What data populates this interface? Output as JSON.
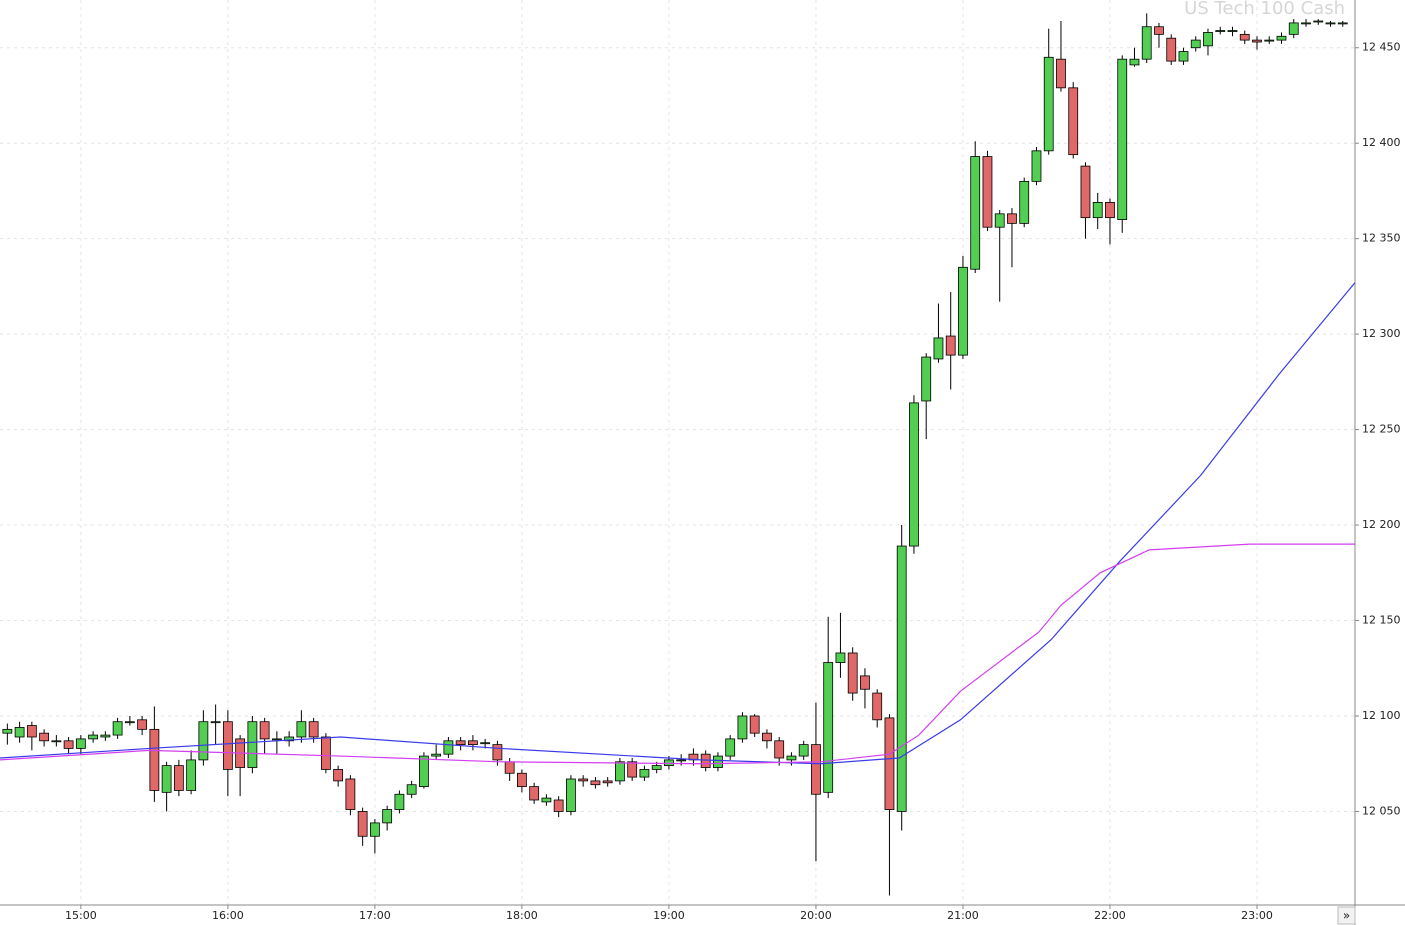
{
  "chart_data": {
    "type": "candlestick",
    "title": "US Tech 100 Cash",
    "scroll_button": "»",
    "x": [
      870,
      875,
      880,
      885,
      890,
      895,
      900,
      905,
      910,
      915,
      920,
      925,
      930,
      935,
      940,
      945,
      950,
      955,
      960,
      965,
      970,
      975,
      980,
      985,
      990,
      995,
      1000,
      1005,
      1010,
      1015,
      1020,
      1025,
      1030,
      1035,
      1040,
      1045,
      1050,
      1055,
      1060,
      1065,
      1070,
      1075,
      1080,
      1085,
      1090,
      1095,
      1100,
      1105,
      1110,
      1115,
      1120,
      1125,
      1130,
      1135,
      1140,
      1145,
      1150,
      1155,
      1160,
      1165,
      1170,
      1175,
      1180,
      1185,
      1190,
      1195,
      1200,
      1205,
      1210,
      1215,
      1220,
      1225,
      1230,
      1235,
      1240,
      1245,
      1250,
      1255,
      1260,
      1265,
      1270,
      1275,
      1280,
      1285,
      1290,
      1295,
      1300,
      1305,
      1310,
      1315,
      1320,
      1325,
      1330,
      1335,
      1340,
      1345,
      1350,
      1355,
      1360,
      1365,
      1370,
      1375,
      1380,
      1385,
      1390,
      1395,
      1400,
      1405,
      1410,
      1415
    ],
    "open": [
      12091,
      12089,
      12095,
      12091,
      12087,
      12087,
      12083,
      12088,
      12089,
      12090,
      12097,
      12098,
      12093,
      12060,
      12074,
      12061,
      12077,
      12097,
      12097,
      12088,
      12073,
      12097,
      12088,
      12087,
      12089,
      12097,
      12089,
      12072,
      12067,
      12050,
      12037,
      12044,
      12051,
      12059,
      12063,
      12079,
      12080,
      12087,
      12087,
      12086,
      12085,
      12076,
      12070,
      12063,
      12055,
      12056,
      12050,
      12067,
      12066,
      12066,
      12066,
      12076,
      12068,
      12072,
      12074,
      12077,
      12080,
      12080,
      12073,
      12079,
      12088,
      12100,
      12091,
      12087,
      12077,
      12079,
      12085,
      12060,
      12128,
      12133,
      12121,
      12112,
      12099,
      12050,
      12189,
      12265,
      12287,
      12299,
      12289,
      12334,
      12393,
      12356,
      12363,
      12358,
      12380,
      12396,
      12444,
      12429,
      12388,
      12361,
      12369,
      12360,
      12441,
      12444,
      12461,
      12455,
      12443,
      12450,
      12451,
      12459,
      12459,
      12457,
      12454,
      12454,
      12454,
      12457,
      12463,
      12464,
      12463,
      12463
    ],
    "high": [
      12096,
      12097,
      12097,
      12093,
      12090,
      12089,
      12090,
      12092,
      12092,
      12099,
      12100,
      12100,
      12105,
      12076,
      12077,
      12082,
      12103,
      12106,
      12103,
      12090,
      12100,
      12099,
      12092,
      12092,
      12103,
      12099,
      12091,
      12074,
      12069,
      12052,
      12046,
      12053,
      12061,
      12066,
      12081,
      12085,
      12089,
      12089,
      12090,
      12088,
      12087,
      12078,
      12072,
      12065,
      12059,
      12058,
      12069,
      12069,
      12068,
      12068,
      12078,
      12078,
      12074,
      12076,
      12079,
      12080,
      12083,
      12082,
      12081,
      12090,
      12102,
      12101,
      12093,
      12089,
      12081,
      12087,
      12107,
      12152,
      12154,
      12136,
      12125,
      12114,
      12101,
      12200,
      12268,
      12290,
      12316,
      12322,
      12341,
      12401,
      12396,
      12365,
      12366,
      12382,
      12398,
      12460,
      12464,
      12432,
      12390,
      12374,
      12371,
      12446,
      12450,
      12468,
      12463,
      12457,
      12450,
      12456,
      12460,
      12461,
      12461,
      12459,
      12456,
      12456,
      12458,
      12465,
      12465,
      12465,
      12464,
      12464
    ],
    "low": [
      12085,
      12086,
      12082,
      12084,
      12084,
      12080,
      12080,
      12086,
      12087,
      12088,
      12095,
      12090,
      12055,
      12050,
      12058,
      12059,
      12074,
      12085,
      12058,
      12058,
      12070,
      12080,
      12080,
      12084,
      12086,
      12086,
      12070,
      12063,
      12048,
      12032,
      12028,
      12040,
      12049,
      12057,
      12062,
      12077,
      12078,
      12082,
      12082,
      12083,
      12074,
      12066,
      12060,
      12054,
      12053,
      12047,
      12048,
      12063,
      12062,
      12063,
      12064,
      12066,
      12066,
      12070,
      12072,
      12074,
      12074,
      12071,
      12071,
      12077,
      12086,
      12089,
      12083,
      12074,
      12074,
      12077,
      12024,
      12057,
      12120,
      12108,
      12104,
      12094,
      12006,
      12040,
      12185,
      12245,
      12285,
      12271,
      12287,
      12332,
      12354,
      12317,
      12335,
      12356,
      12378,
      12394,
      12427,
      12392,
      12350,
      12355,
      12347,
      12353,
      12440,
      12442,
      12450,
      12441,
      12441,
      12448,
      12446,
      12457,
      12456,
      12452,
      12449,
      12452,
      12452,
      12455,
      12461,
      12462,
      12461,
      12461
    ],
    "close": [
      12093,
      12094,
      12089,
      12087,
      12087,
      12083,
      12088,
      12090,
      12090,
      12097,
      12097,
      12093,
      12061,
      12074,
      12061,
      12077,
      12097,
      12097,
      12072,
      12073,
      12097,
      12088,
      12088,
      12089,
      12097,
      12089,
      12072,
      12066,
      12051,
      12037,
      12044,
      12051,
      12059,
      12064,
      12079,
      12080,
      12087,
      12085,
      12085,
      12086,
      12077,
      12070,
      12063,
      12056,
      12057,
      12050,
      12067,
      12066,
      12064,
      12065,
      12076,
      12068,
      12072,
      12074,
      12077,
      12077,
      12077,
      12073,
      12079,
      12088,
      12100,
      12091,
      12087,
      12078,
      12079,
      12085,
      12059,
      12128,
      12133,
      12112,
      12114,
      12098,
      12051,
      12189,
      12264,
      12288,
      12298,
      12289,
      12335,
      12393,
      12356,
      12363,
      12358,
      12380,
      12396,
      12445,
      12429,
      12394,
      12361,
      12369,
      12361,
      12444,
      12444,
      12461,
      12457,
      12443,
      12448,
      12454,
      12458,
      12459,
      12459,
      12454,
      12453,
      12454,
      12456,
      12463,
      12463,
      12464,
      12463,
      12463
    ],
    "up_color": "#52cf52",
    "down_color": "#e06868",
    "lines": [
      {
        "color": "#3b3bea",
        "x": [
          867,
          928,
          1006,
          1071,
          1153,
          1202,
          1234,
          1259,
          1296,
          1324,
          1357,
          1389,
          1420
        ],
        "values": [
          12078,
          12083,
          12089,
          12083,
          12077,
          12075,
          12078,
          12098,
          12140,
          12181,
          12226,
          12279,
          12327
        ]
      },
      {
        "color": "#d23ff0",
        "x": [
          867,
          928,
          1006,
          1071,
          1153,
          1202,
          1230,
          1242,
          1259,
          1291,
          1300,
          1316,
          1336,
          1377,
          1420
        ],
        "values": [
          12077,
          12082,
          12079,
          12076,
          12075,
          12076,
          12080,
          12090,
          12113,
          12144,
          12158,
          12175,
          12187,
          12190,
          12190
        ]
      }
    ],
    "xlim": [
      867,
      1420
    ],
    "ylim": [
      12001,
      12475
    ],
    "xticks": [
      {
        "value": 900,
        "label": "15:00"
      },
      {
        "value": 960,
        "label": "16:00"
      },
      {
        "value": 1020,
        "label": "17:00"
      },
      {
        "value": 1080,
        "label": "18:00"
      },
      {
        "value": 1140,
        "label": "19:00"
      },
      {
        "value": 1200,
        "label": "20:00"
      },
      {
        "value": 1260,
        "label": "21:00"
      },
      {
        "value": 1320,
        "label": "22:00"
      },
      {
        "value": 1380,
        "label": "23:00"
      }
    ],
    "yticks": [
      {
        "value": 12050,
        "label": "12 050"
      },
      {
        "value": 12100,
        "label": "12 100"
      },
      {
        "value": 12150,
        "label": "12 150"
      },
      {
        "value": 12200,
        "label": "12 200"
      },
      {
        "value": 12250,
        "label": "12 250"
      },
      {
        "value": 12300,
        "label": "12 300"
      },
      {
        "value": 12350,
        "label": "12 350"
      },
      {
        "value": 12400,
        "label": "12 400"
      },
      {
        "value": 12450,
        "label": "12 450"
      }
    ],
    "grid": true
  }
}
